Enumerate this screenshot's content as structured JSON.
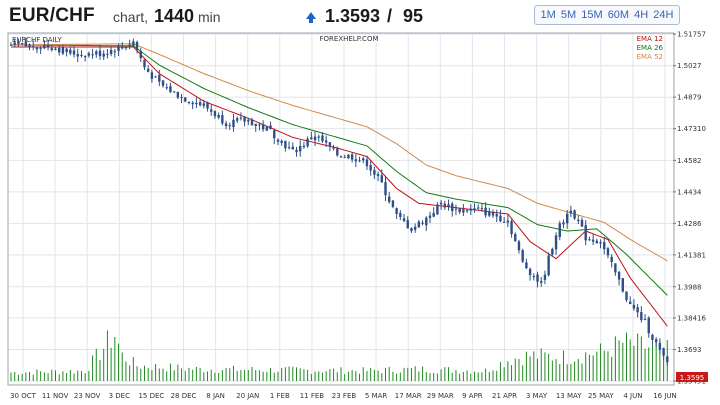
{
  "header": {
    "pair": "EUR/CHF",
    "chart_word": "chart,",
    "timeframe_value": "1440",
    "timeframe_unit": "min",
    "price": "1.3593",
    "separator": "/",
    "spread": "95",
    "arrow_icon": "up-arrow-icon",
    "timeframes": [
      "1M",
      "5M",
      "15M",
      "60M",
      "4H",
      "24H"
    ]
  },
  "chart": {
    "symbol_label": "EURCHF DAILY",
    "watermark": "FOREXHELP.COM",
    "legend": [
      {
        "label": "EMA 12",
        "color": "#c0101a"
      },
      {
        "label": "EMA 26",
        "color": "#137a13"
      },
      {
        "label": "EMA 52",
        "color": "#d08a4a"
      }
    ],
    "current_price": "1.3595",
    "colors": {
      "candle": "#2d4f86",
      "volume": "#1e8a1e",
      "price_tag": "#c81818"
    }
  },
  "chart_data": {
    "type": "candlestick",
    "title": "EURCHF DAILY",
    "x_tick_labels": [
      "30 OCT",
      "11 NOV",
      "23 NOV",
      "3 DEC",
      "15 DEC",
      "28 DEC",
      "8 JAN",
      "20 JAN",
      "1 FEB",
      "11 FEB",
      "23 FEB",
      "5 MAR",
      "17 MAR",
      "29 MAR",
      "9 APR",
      "21 APR",
      "3 MAY",
      "13 MAY",
      "25 MAY",
      "4 JUN",
      "16 JUN"
    ],
    "y_tick_labels": [
      "1.51757",
      "1.5027",
      "1.4879",
      "1.47310",
      "1.4582",
      "1.4434",
      "1.4286",
      "1.41381",
      "1.3988",
      "1.38416",
      "1.3693",
      "1.35451"
    ],
    "ylim": [
      1.3545,
      1.5176
    ],
    "grid": true,
    "close_path": [
      [
        0,
        1.512
      ],
      [
        10,
        1.512
      ],
      [
        18,
        1.508
      ],
      [
        24,
        1.5085
      ],
      [
        30,
        1.5115
      ],
      [
        33,
        1.514
      ],
      [
        36,
        1.502
      ],
      [
        40,
        1.494
      ],
      [
        46,
        1.488
      ],
      [
        52,
        1.484
      ],
      [
        58,
        1.476
      ],
      [
        64,
        1.477
      ],
      [
        70,
        1.472
      ],
      [
        76,
        1.462
      ],
      [
        82,
        1.47
      ],
      [
        88,
        1.461
      ],
      [
        92,
        1.46
      ],
      [
        96,
        1.457
      ],
      [
        100,
        1.447
      ],
      [
        104,
        1.432
      ],
      [
        108,
        1.426
      ],
      [
        112,
        1.431
      ],
      [
        116,
        1.438
      ],
      [
        120,
        1.435
      ],
      [
        126,
        1.435
      ],
      [
        134,
        1.43
      ],
      [
        138,
        1.41
      ],
      [
        143,
        1.4
      ],
      [
        147,
        1.424
      ],
      [
        151,
        1.436
      ],
      [
        155,
        1.422
      ],
      [
        159,
        1.42
      ],
      [
        163,
        1.405
      ],
      [
        167,
        1.39
      ],
      [
        171,
        1.382
      ],
      [
        176,
        1.365
      ],
      [
        178,
        1.36
      ]
    ],
    "ema_path": {
      "EMA 12": [
        [
          0,
          1.5115
        ],
        [
          33,
          1.5115
        ],
        [
          40,
          1.499
        ],
        [
          52,
          1.486
        ],
        [
          64,
          1.478
        ],
        [
          76,
          1.469
        ],
        [
          88,
          1.464
        ],
        [
          96,
          1.46
        ],
        [
          104,
          1.445
        ],
        [
          110,
          1.438
        ],
        [
          120,
          1.436
        ],
        [
          134,
          1.433
        ],
        [
          140,
          1.42
        ],
        [
          147,
          1.412
        ],
        [
          155,
          1.425
        ],
        [
          161,
          1.421
        ],
        [
          167,
          1.403
        ],
        [
          178,
          1.378
        ]
      ],
      "EMA 26": [
        [
          0,
          1.5125
        ],
        [
          33,
          1.512
        ],
        [
          40,
          1.503
        ],
        [
          52,
          1.492
        ],
        [
          64,
          1.483
        ],
        [
          76,
          1.475
        ],
        [
          88,
          1.469
        ],
        [
          96,
          1.465
        ],
        [
          104,
          1.453
        ],
        [
          112,
          1.443
        ],
        [
          120,
          1.44
        ],
        [
          134,
          1.436
        ],
        [
          142,
          1.428
        ],
        [
          150,
          1.425
        ],
        [
          158,
          1.426
        ],
        [
          166,
          1.414
        ],
        [
          178,
          1.393
        ]
      ],
      "EMA 52": [
        [
          0,
          1.5125
        ],
        [
          33,
          1.513
        ],
        [
          40,
          1.508
        ],
        [
          52,
          1.499
        ],
        [
          64,
          1.491
        ],
        [
          76,
          1.484
        ],
        [
          88,
          1.478
        ],
        [
          96,
          1.474
        ],
        [
          104,
          1.466
        ],
        [
          112,
          1.456
        ],
        [
          120,
          1.451
        ],
        [
          134,
          1.445
        ],
        [
          142,
          1.438
        ],
        [
          152,
          1.433
        ],
        [
          160,
          1.429
        ],
        [
          168,
          1.42
        ],
        [
          178,
          1.41
        ]
      ]
    },
    "bar_count": 178,
    "volume_profile": [
      [
        0,
        10
      ],
      [
        20,
        12
      ],
      [
        26,
        45
      ],
      [
        28,
        55
      ],
      [
        30,
        30
      ],
      [
        34,
        18
      ],
      [
        50,
        14
      ],
      [
        95,
        12
      ],
      [
        110,
        14
      ],
      [
        128,
        12
      ],
      [
        134,
        25
      ],
      [
        140,
        30
      ],
      [
        150,
        28
      ],
      [
        160,
        35
      ],
      [
        165,
        45
      ],
      [
        178,
        35
      ]
    ]
  }
}
